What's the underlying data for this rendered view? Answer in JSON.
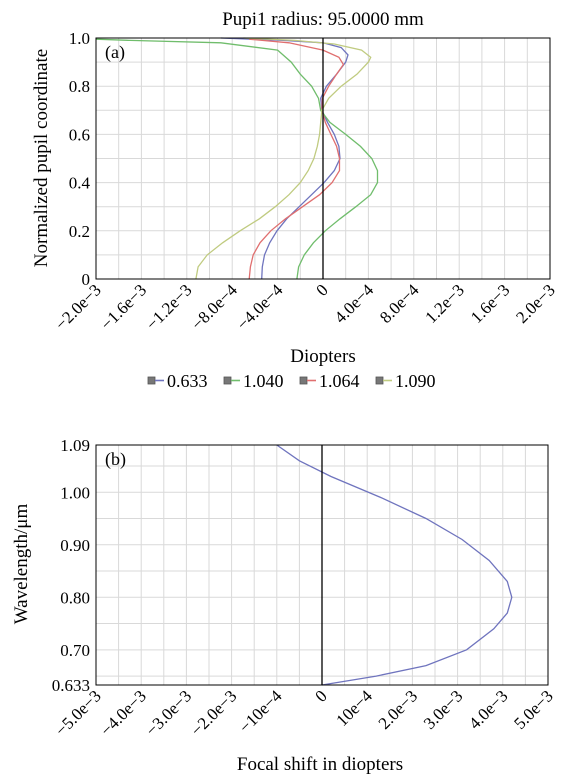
{
  "chart_data": [
    {
      "type": "line",
      "panel_label": "(a)",
      "title": "Pupi1 radius: 95.0000 mm",
      "xlabel": "Diopters",
      "ylabel": "Normalized pupil coordinate",
      "xlim": [
        -0.002,
        0.002
      ],
      "ylim": [
        0,
        1
      ],
      "x_ticks": [
        -0.002,
        -0.0016,
        -0.0012,
        -0.0008,
        -0.0004,
        0,
        0.0004,
        0.0008,
        0.0012,
        0.0016,
        0.002
      ],
      "x_tick_labels": [
        "−2.0e−3",
        "−1.6e−3",
        "−1.2e−3",
        "−8.0e−4",
        "−4.0e−4",
        "0",
        "4.0e−4",
        "8.0e−4",
        "1.2e−3",
        "1.6e−3",
        "2.0e−3"
      ],
      "y_ticks": [
        0,
        0.2,
        0.4,
        0.6,
        0.8,
        1.0
      ],
      "y_tick_labels": [
        "0",
        "0.2",
        "0.4",
        "0.6",
        "0.8",
        "1.0"
      ],
      "grid": true,
      "legend_position": "bottom",
      "series": [
        {
          "name": "0.633",
          "color": "#6f74be",
          "points": [
            [
              -0.00054,
              0
            ],
            [
              -0.000535,
              0.05
            ],
            [
              -0.000515,
              0.1
            ],
            [
              -0.00047,
              0.15
            ],
            [
              -0.000405,
              0.2
            ],
            [
              -0.00032,
              0.25
            ],
            [
              -0.00021,
              0.3
            ],
            [
              -0.0001,
              0.35
            ],
            [
              1e-05,
              0.4
            ],
            [
              0.0001,
              0.45
            ],
            [
              0.00015,
              0.5
            ],
            [
              0.00014,
              0.55
            ],
            [
              0.0001,
              0.6
            ],
            [
              4e-05,
              0.65
            ],
            [
              -1e-05,
              0.7
            ],
            [
              -2e-05,
              0.75
            ],
            [
              3e-05,
              0.8
            ],
            [
              0.00012,
              0.85
            ],
            [
              0.0002,
              0.9
            ],
            [
              0.00022,
              0.93
            ],
            [
              0.00016,
              0.96
            ],
            [
              0.0,
              0.98
            ],
            [
              -0.00035,
              0.99
            ],
            [
              -0.0009,
              1.0
            ]
          ]
        },
        {
          "name": "1.040",
          "color": "#70bd6c",
          "points": [
            [
              -0.00023,
              0
            ],
            [
              -0.000215,
              0.05
            ],
            [
              -0.000165,
              0.1
            ],
            [
              -8.5e-05,
              0.15
            ],
            [
              2e-05,
              0.2
            ],
            [
              0.00015,
              0.25
            ],
            [
              0.00029,
              0.3
            ],
            [
              0.00042,
              0.35
            ],
            [
              0.00048,
              0.4
            ],
            [
              0.00048,
              0.45
            ],
            [
              0.00043,
              0.5
            ],
            [
              0.00033,
              0.55
            ],
            [
              0.0002,
              0.6
            ],
            [
              6e-05,
              0.65
            ],
            [
              -2e-05,
              0.7
            ],
            [
              -4e-05,
              0.75
            ],
            [
              -0.0001,
              0.8
            ],
            [
              -0.0002,
              0.85
            ],
            [
              -0.00028,
              0.9
            ],
            [
              -0.0004,
              0.95
            ],
            [
              -0.0009,
              0.98
            ],
            [
              -0.0017,
              0.99
            ],
            [
              -0.002,
              0.995
            ]
          ]
        },
        {
          "name": "1.064",
          "color": "#e06f6f",
          "points": [
            [
              -0.00065,
              0
            ],
            [
              -0.00064,
              0.05
            ],
            [
              -0.000615,
              0.1
            ],
            [
              -0.000555,
              0.15
            ],
            [
              -0.00046,
              0.2
            ],
            [
              -0.00033,
              0.25
            ],
            [
              -0.00018,
              0.3
            ],
            [
              -3e-05,
              0.35
            ],
            [
              8e-05,
              0.4
            ],
            [
              0.000145,
              0.45
            ],
            [
              0.000145,
              0.5
            ],
            [
              0.00012,
              0.55
            ],
            [
              7e-05,
              0.6
            ],
            [
              2e-05,
              0.65
            ],
            [
              -1e-05,
              0.7
            ],
            [
              -5e-06,
              0.75
            ],
            [
              5e-05,
              0.8
            ],
            [
              0.00012,
              0.85
            ],
            [
              0.00018,
              0.89
            ],
            [
              0.00014,
              0.92
            ],
            [
              0.0,
              0.95
            ],
            [
              -0.0003,
              0.98
            ],
            [
              -0.00065,
              0.995
            ]
          ]
        },
        {
          "name": "1.090",
          "color": "#c0cb80",
          "points": [
            [
              -0.00112,
              0
            ],
            [
              -0.0011,
              0.05
            ],
            [
              -0.00102,
              0.1
            ],
            [
              -0.000885,
              0.15
            ],
            [
              -0.00073,
              0.2
            ],
            [
              -0.00056,
              0.25
            ],
            [
              -0.00042,
              0.3
            ],
            [
              -0.0003,
              0.35
            ],
            [
              -0.0002,
              0.4
            ],
            [
              -0.00013,
              0.45
            ],
            [
              -8e-05,
              0.5
            ],
            [
              -5e-05,
              0.55
            ],
            [
              -3e-05,
              0.6
            ],
            [
              -2e-05,
              0.65
            ],
            [
              -1e-05,
              0.7
            ],
            [
              5e-05,
              0.75
            ],
            [
              0.00016,
              0.8
            ],
            [
              0.0003,
              0.85
            ],
            [
              0.0004,
              0.9
            ],
            [
              0.00042,
              0.92
            ],
            [
              0.00034,
              0.95
            ],
            [
              0.0001,
              0.975
            ],
            [
              -0.00025,
              0.99
            ],
            [
              -0.0007,
              1.0
            ]
          ]
        }
      ]
    },
    {
      "type": "line",
      "panel_label": "(b)",
      "xlabel": "Focal shift in diopters",
      "ylabel": "Wavelength/μm",
      "xlim": [
        -0.005,
        0.005
      ],
      "ylim": [
        0.633,
        1.09
      ],
      "x_ticks": [
        -0.005,
        -0.004,
        -0.003,
        -0.002,
        -0.001,
        0,
        0.001,
        0.002,
        0.003,
        0.004,
        0.005
      ],
      "x_tick_labels": [
        "−5.0e−3",
        "−4.0e−3",
        "−3.0e−3",
        "−2.0e−3",
        "−10e−4",
        "0",
        "10e−4",
        "2.0e−3",
        "3.0e−3",
        "4.0e−3",
        "5.0e−3"
      ],
      "y_ticks": [
        0.633,
        0.7,
        0.8,
        0.9,
        1.0,
        1.09
      ],
      "y_tick_labels": [
        "0.633",
        "0.70",
        "0.80",
        "0.90",
        "1.00",
        "1.09"
      ],
      "grid": true,
      "series": [
        {
          "color": "#6f74be",
          "points": [
            [
              0.0,
              0.633
            ],
            [
              0.0012,
              0.65
            ],
            [
              0.0023,
              0.67
            ],
            [
              0.0032,
              0.7
            ],
            [
              0.0038,
              0.74
            ],
            [
              0.0041,
              0.77
            ],
            [
              0.0042,
              0.8
            ],
            [
              0.0041,
              0.83
            ],
            [
              0.0037,
              0.87
            ],
            [
              0.0031,
              0.91
            ],
            [
              0.0023,
              0.95
            ],
            [
              0.0013,
              0.99
            ],
            [
              0.0002,
              1.03
            ],
            [
              -0.0005,
              1.06
            ],
            [
              -0.001,
              1.09
            ]
          ]
        }
      ]
    }
  ]
}
